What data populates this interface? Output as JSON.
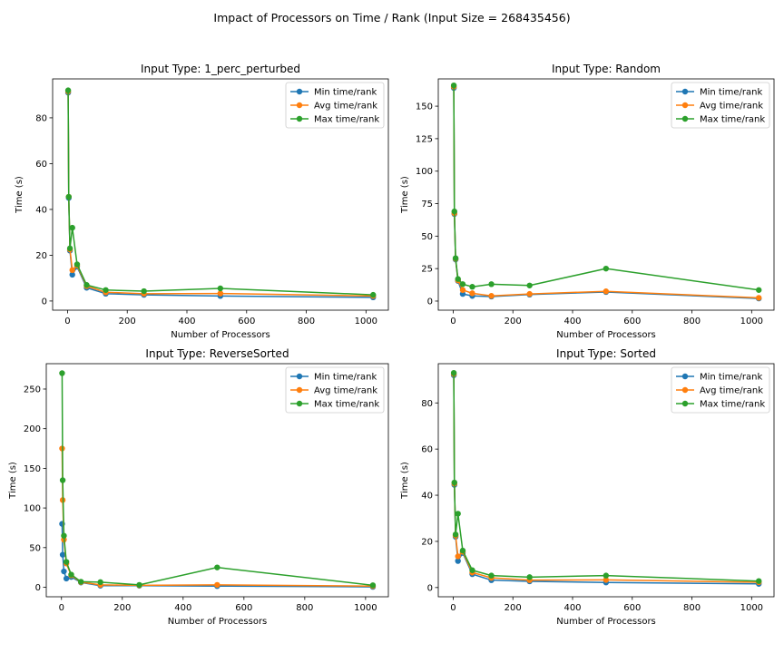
{
  "figure": {
    "suptitle": "Impact of Processors on Time / Rank (Input Size = 268435456)"
  },
  "chart_data": [
    {
      "type": "line",
      "title": "Input Type: 1_perc_perturbed",
      "xlabel": "Number of Processors",
      "ylabel": "Time (s)",
      "xlim": [
        -50,
        1075
      ],
      "ylim": [
        -4,
        97
      ],
      "xticks": [
        0,
        200,
        400,
        600,
        800,
        1000
      ],
      "yticks": [
        0,
        20,
        40,
        60,
        80
      ],
      "legend": "top-right",
      "x": [
        2,
        4,
        8,
        16,
        32,
        64,
        128,
        256,
        512,
        1024
      ],
      "series": [
        {
          "name": "Min time/rank",
          "color": "#1f77b4",
          "values": [
            91.0,
            45.0,
            22.0,
            11.5,
            15.0,
            5.8,
            3.2,
            2.7,
            2.2,
            1.6
          ]
        },
        {
          "name": "Avg time/rank",
          "color": "#ff7f0e",
          "values": [
            91.5,
            45.5,
            22.5,
            13.5,
            15.5,
            6.5,
            3.8,
            3.2,
            3.3,
            2.2
          ]
        },
        {
          "name": "Max time/rank",
          "color": "#2ca02c",
          "values": [
            92.0,
            45.5,
            23.0,
            32.0,
            16.0,
            7.0,
            4.8,
            4.3,
            5.5,
            2.7
          ]
        }
      ]
    },
    {
      "type": "line",
      "title": "Input Type: Random",
      "xlabel": "Number of Processors",
      "ylabel": "Time (s)",
      "xlim": [
        -50,
        1075
      ],
      "ylim": [
        -7,
        171
      ],
      "xticks": [
        0,
        200,
        400,
        600,
        800,
        1000
      ],
      "yticks": [
        0,
        25,
        50,
        75,
        100,
        125,
        150
      ],
      "legend": "top-right",
      "x": [
        2,
        4,
        8,
        16,
        32,
        64,
        128,
        256,
        512,
        1024
      ],
      "series": [
        {
          "name": "Min time/rank",
          "color": "#1f77b4",
          "values": [
            164.0,
            67.0,
            32.0,
            15.5,
            5.5,
            4.0,
            3.5,
            5.0,
            7.0,
            2.0
          ]
        },
        {
          "name": "Avg time/rank",
          "color": "#ff7f0e",
          "values": [
            165.0,
            67.5,
            32.5,
            16.0,
            8.5,
            6.0,
            4.0,
            5.5,
            7.5,
            2.5
          ]
        },
        {
          "name": "Max time/rank",
          "color": "#2ca02c",
          "values": [
            166.0,
            69.0,
            33.0,
            17.0,
            13.0,
            11.0,
            13.0,
            12.0,
            25.0,
            8.5
          ]
        }
      ]
    },
    {
      "type": "line",
      "title": "Input Type: ReverseSorted",
      "xlabel": "Number of Processors",
      "ylabel": "Time (s)",
      "xlim": [
        -50,
        1075
      ],
      "ylim": [
        -12,
        282
      ],
      "xticks": [
        0,
        200,
        400,
        600,
        800,
        1000
      ],
      "yticks": [
        0,
        50,
        100,
        150,
        200,
        250
      ],
      "legend": "top-right",
      "x": [
        2,
        4,
        8,
        16,
        32,
        64,
        128,
        256,
        512,
        1024
      ],
      "series": [
        {
          "name": "Min time/rank",
          "color": "#1f77b4",
          "values": [
            80.0,
            41.0,
            20.0,
            11.0,
            13.0,
            6.0,
            2.0,
            2.0,
            1.5,
            0.5
          ]
        },
        {
          "name": "Avg time/rank",
          "color": "#ff7f0e",
          "values": [
            175.0,
            110.0,
            60.0,
            30.0,
            15.0,
            6.5,
            3.0,
            2.5,
            3.0,
            1.5
          ]
        },
        {
          "name": "Max time/rank",
          "color": "#2ca02c",
          "values": [
            270.0,
            135.0,
            65.0,
            32.0,
            16.0,
            7.0,
            6.5,
            3.0,
            25.0,
            2.5
          ]
        }
      ]
    },
    {
      "type": "line",
      "title": "Input Type: Sorted",
      "xlabel": "Number of Processors",
      "ylabel": "Time (s)",
      "xlim": [
        -50,
        1075
      ],
      "ylim": [
        -4,
        97
      ],
      "xticks": [
        0,
        200,
        400,
        600,
        800,
        1000
      ],
      "yticks": [
        0,
        20,
        40,
        60,
        80
      ],
      "legend": "top-right",
      "x": [
        2,
        4,
        8,
        16,
        32,
        64,
        128,
        256,
        512,
        1024
      ],
      "series": [
        {
          "name": "Min time/rank",
          "color": "#1f77b4",
          "values": [
            92.0,
            44.5,
            22.0,
            11.5,
            15.0,
            5.8,
            3.2,
            2.7,
            2.2,
            1.6
          ]
        },
        {
          "name": "Avg time/rank",
          "color": "#ff7f0e",
          "values": [
            92.5,
            45.0,
            22.5,
            13.5,
            15.5,
            6.5,
            4.2,
            3.2,
            3.3,
            2.3
          ]
        },
        {
          "name": "Max time/rank",
          "color": "#2ca02c",
          "values": [
            93.0,
            45.5,
            23.0,
            32.0,
            16.0,
            7.5,
            5.2,
            4.5,
            5.2,
            2.8
          ]
        }
      ]
    }
  ]
}
